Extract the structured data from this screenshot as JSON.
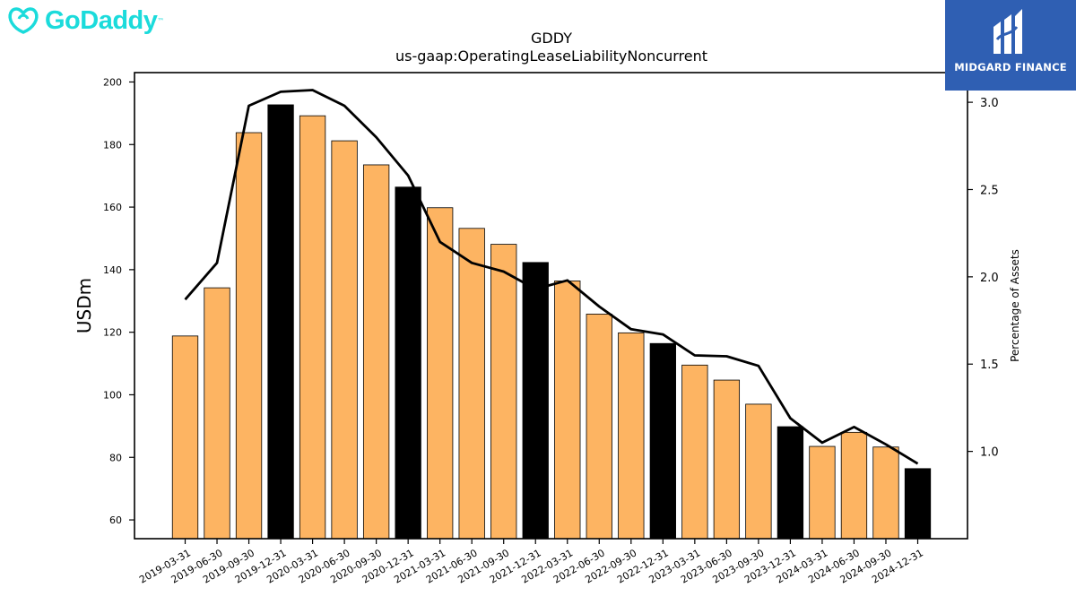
{
  "header": {
    "brand_name": "GoDaddy",
    "brand_mark": "™",
    "watermark": "MIDGARD FINANCE"
  },
  "chart_data": {
    "type": "bar",
    "title": "GDDY",
    "subtitle": "us-gaap:OperatingLeaseLiabilityNoncurrent",
    "ylabel": "USDm",
    "y2label": "Percentage of Assets",
    "ylim": [
      54,
      203
    ],
    "y2lim": [
      0.5,
      3.17
    ],
    "yticks": [
      60,
      80,
      100,
      120,
      140,
      160,
      180,
      200
    ],
    "y2ticks": [
      1.0,
      1.5,
      2.0,
      2.5,
      3.0
    ],
    "y2tick_labels": [
      "1.0",
      "1.5",
      "2.0",
      "2.5",
      "3.0"
    ],
    "categories": [
      "2019-03-31",
      "2019-06-30",
      "2019-09-30",
      "2019-12-31",
      "2020-03-31",
      "2020-06-30",
      "2020-09-30",
      "2020-12-31",
      "2021-03-31",
      "2021-06-30",
      "2021-09-30",
      "2021-12-31",
      "2022-03-31",
      "2022-06-30",
      "2022-09-30",
      "2022-12-31",
      "2023-03-31",
      "2023-06-30",
      "2023-09-30",
      "2023-12-31",
      "2024-03-31",
      "2024-06-30",
      "2024-09-30",
      "2024-12-31"
    ],
    "series": [
      {
        "kind": "bar",
        "values": [
          118.8,
          134.2,
          183.8,
          192.7,
          189.2,
          181.2,
          173.5,
          166.4,
          159.8,
          153.2,
          148.1,
          142.3,
          136.4,
          125.8,
          119.8,
          116.4,
          109.5,
          104.7,
          97.0,
          89.8,
          83.5,
          88.0,
          83.3,
          76.4
        ],
        "colors": [
          "#fdb462",
          "#fdb462",
          "#fdb462",
          "#000000",
          "#fdb462",
          "#fdb462",
          "#fdb462",
          "#000000",
          "#fdb462",
          "#fdb462",
          "#fdb462",
          "#000000",
          "#fdb462",
          "#fdb462",
          "#fdb462",
          "#000000",
          "#fdb462",
          "#fdb462",
          "#fdb462",
          "#000000",
          "#fdb462",
          "#fdb462",
          "#fdb462",
          "#000000"
        ]
      },
      {
        "kind": "line",
        "axis": "right",
        "color": "#000000",
        "values": [
          1.87,
          2.08,
          2.98,
          3.06,
          3.07,
          2.98,
          2.8,
          2.58,
          2.2,
          2.08,
          2.03,
          1.93,
          1.98,
          1.83,
          1.7,
          1.67,
          1.55,
          1.545,
          1.49,
          1.19,
          1.05,
          1.14,
          1.04,
          0.93
        ]
      }
    ]
  }
}
